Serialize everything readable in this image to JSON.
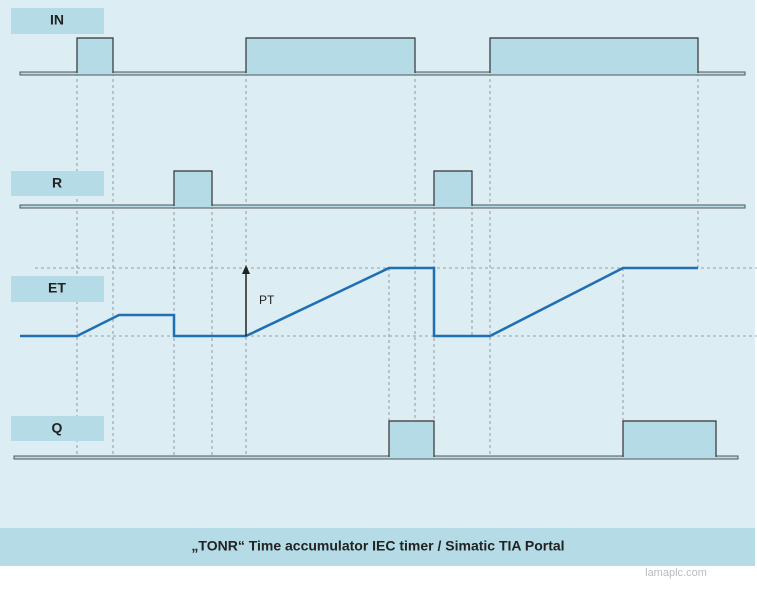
{
  "signals": [
    {
      "label": "IN"
    },
    {
      "label": "R"
    },
    {
      "label": "ET"
    },
    {
      "label": "Q"
    }
  ],
  "pt_label": "PT",
  "caption": "„TONR“ Time accumulator IEC timer / Simatic TIA Portal",
  "watermark": "lamaplc.com"
}
